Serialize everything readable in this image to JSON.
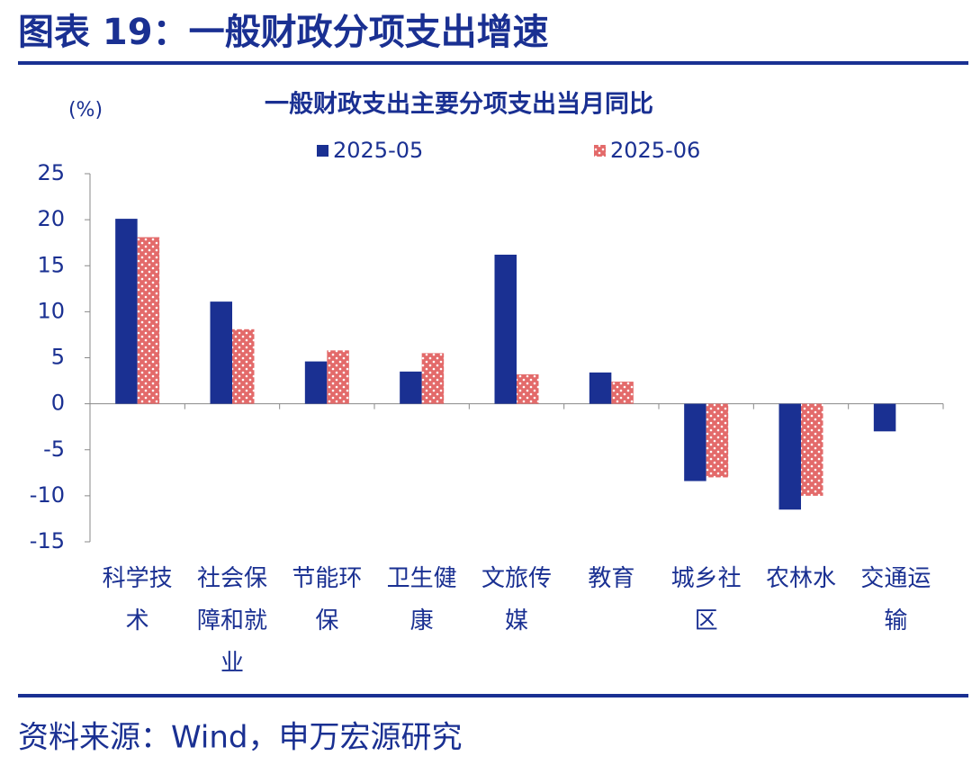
{
  "header": {
    "title": "图表 19：一般财政分项支出增速"
  },
  "chart_data": {
    "type": "bar",
    "title": "一般财政支出主要分项支出当月同比",
    "y_label": "(%)",
    "categories": [
      "科学技术",
      "社会保障和就业",
      "节能环保",
      "卫生健康",
      "文旅传媒",
      "教育",
      "城乡社区",
      "农林水",
      "交通运输"
    ],
    "series": [
      {
        "name": "2025-05",
        "color": "#1a3092",
        "values": [
          20.1,
          11.1,
          4.6,
          3.5,
          16.2,
          3.4,
          -8.4,
          -11.5,
          -3.0
        ]
      },
      {
        "name": "2025-06",
        "color": "#e36a6a",
        "values": [
          18.1,
          8.1,
          5.8,
          5.5,
          3.2,
          2.4,
          -8.0,
          -10.0,
          null
        ]
      }
    ],
    "ylim": [
      -15,
      25
    ],
    "yticks": [
      -15,
      -10,
      -5,
      0,
      5,
      10,
      15,
      20,
      25
    ],
    "grid": false
  },
  "footer": {
    "source": "资料来源：Wind，申万宏源研究"
  }
}
